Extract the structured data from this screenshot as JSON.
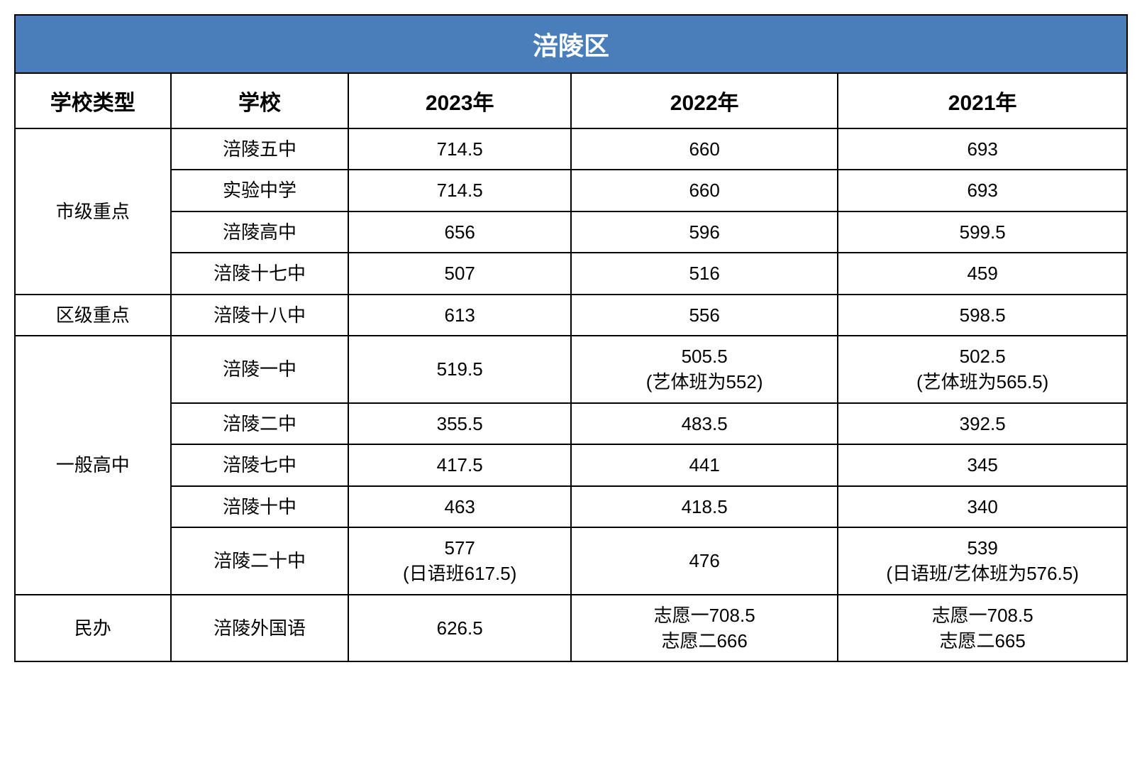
{
  "table": {
    "title": "涪陵区",
    "title_bg_color": "#4a7ebb",
    "title_text_color": "#ffffff",
    "border_color": "#000000",
    "background_color": "#ffffff",
    "columns": [
      "学校类型",
      "学校",
      "2023年",
      "2022年",
      "2021年"
    ],
    "column_widths_pct": [
      14,
      16,
      20,
      24,
      26
    ],
    "title_fontsize": 36,
    "header_fontsize": 30,
    "cell_fontsize": 26,
    "groups": [
      {
        "type": "市级重点",
        "rows": [
          {
            "school": "涪陵五中",
            "y2023": "714.5",
            "y2022": "660",
            "y2021": "693"
          },
          {
            "school": "实验中学",
            "y2023": "714.5",
            "y2022": "660",
            "y2021": "693"
          },
          {
            "school": "涪陵高中",
            "y2023": "656",
            "y2022": "596",
            "y2021": "599.5"
          },
          {
            "school": "涪陵十七中",
            "y2023": "507",
            "y2022": "516",
            "y2021": "459"
          }
        ]
      },
      {
        "type": "区级重点",
        "rows": [
          {
            "school": "涪陵十八中",
            "y2023": "613",
            "y2022": "556",
            "y2021": "598.5"
          }
        ]
      },
      {
        "type": "一般高中",
        "rows": [
          {
            "school": "涪陵一中",
            "y2023": "519.5",
            "y2022": "505.5\n(艺体班为552)",
            "y2021": "502.5\n(艺体班为565.5)"
          },
          {
            "school": "涪陵二中",
            "y2023": "355.5",
            "y2022": "483.5",
            "y2021": "392.5"
          },
          {
            "school": "涪陵七中",
            "y2023": "417.5",
            "y2022": "441",
            "y2021": "345"
          },
          {
            "school": "涪陵十中",
            "y2023": "463",
            "y2022": "418.5",
            "y2021": "340"
          },
          {
            "school": "涪陵二十中",
            "y2023": "577\n(日语班617.5)",
            "y2022": "476",
            "y2021": "539\n(日语班/艺体班为576.5)"
          }
        ]
      },
      {
        "type": "民办",
        "rows": [
          {
            "school": "涪陵外国语",
            "y2023": "626.5",
            "y2022": "志愿一708.5\n志愿二666",
            "y2021": "志愿一708.5\n志愿二665"
          }
        ]
      }
    ]
  }
}
